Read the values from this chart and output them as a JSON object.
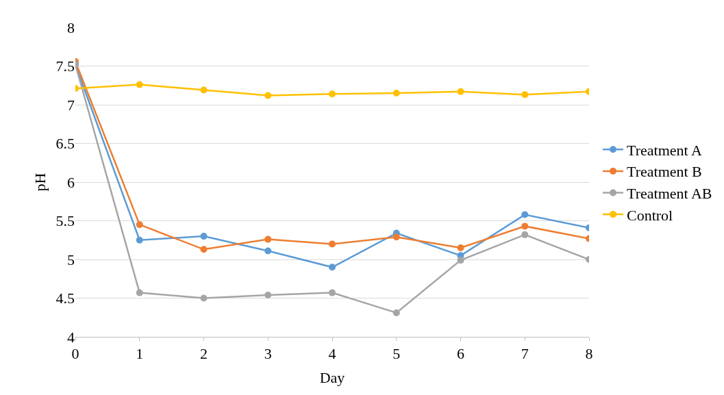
{
  "chart_data": {
    "type": "line",
    "xlabel": "Day",
    "ylabel": "pH",
    "x": [
      0,
      1,
      2,
      3,
      4,
      5,
      6,
      7,
      8
    ],
    "series": [
      {
        "name": "Treatment A",
        "color": "#5b9bd5",
        "values": [
          7.52,
          5.25,
          5.3,
          5.11,
          4.9,
          5.34,
          5.05,
          5.58,
          5.41
        ]
      },
      {
        "name": "Treatment B",
        "color": "#ed7d31",
        "values": [
          7.56,
          5.45,
          5.13,
          5.26,
          5.2,
          5.29,
          5.15,
          5.43,
          5.27
        ]
      },
      {
        "name": "Treatment AB",
        "color": "#a5a5a5",
        "values": [
          7.52,
          4.57,
          4.5,
          4.54,
          4.57,
          4.31,
          4.99,
          5.32,
          5.0
        ]
      },
      {
        "name": "Control",
        "color": "#ffc000",
        "values": [
          7.21,
          7.26,
          7.19,
          7.12,
          7.14,
          7.15,
          7.17,
          7.13,
          7.17
        ]
      }
    ],
    "xlim": [
      0,
      8
    ],
    "xticks": [
      0,
      1,
      2,
      3,
      4,
      5,
      6,
      7,
      8
    ],
    "ylim": [
      4,
      8
    ],
    "yticks": [
      4,
      4.5,
      5,
      5.5,
      6,
      6.5,
      7,
      7.5,
      8
    ],
    "grid": "y",
    "legend": "right",
    "marker": "circle",
    "line_style": "solid"
  }
}
